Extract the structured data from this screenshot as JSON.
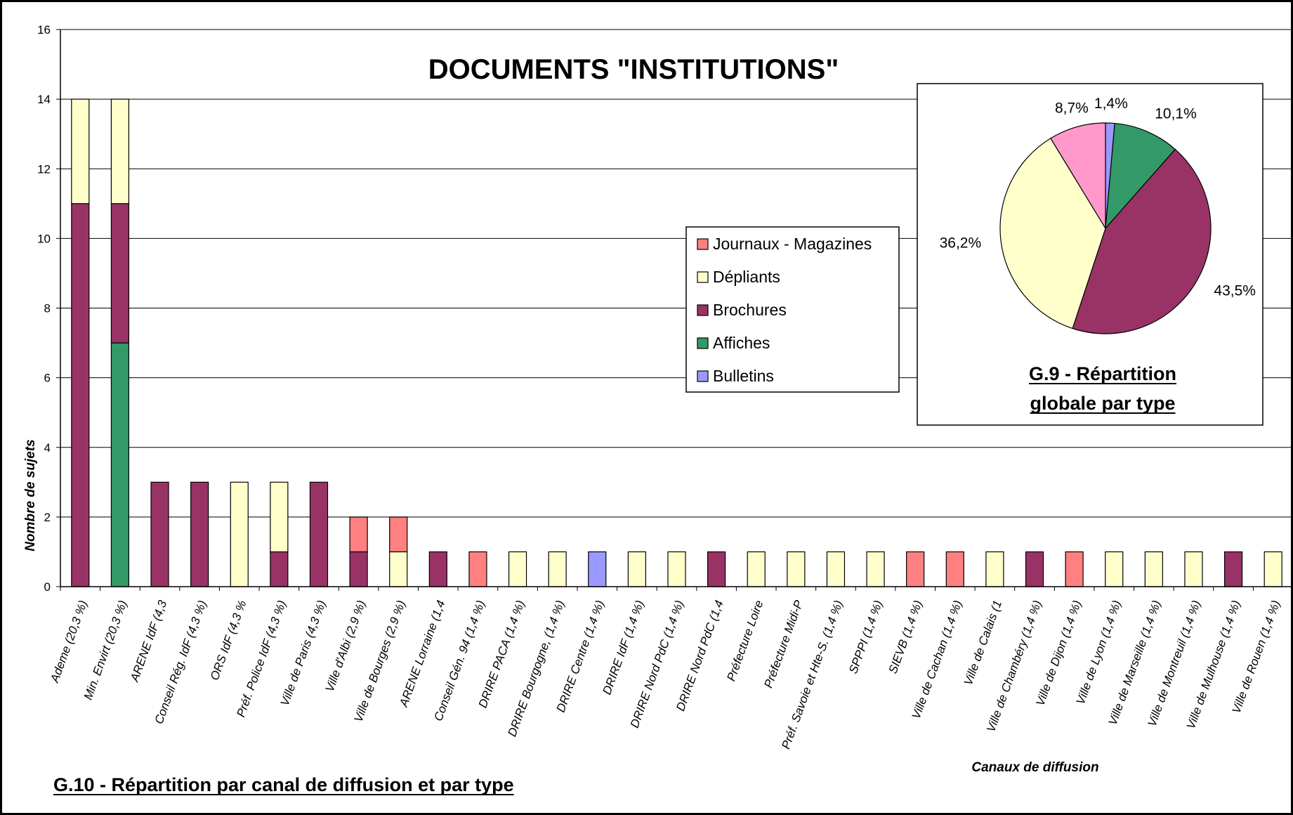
{
  "chart_data": [
    {
      "type": "bar",
      "stacked": true,
      "title": "DOCUMENTS \"INSTITUTIONS\"",
      "caption": "G.10 - Répartition par canal de diffusion et par type",
      "xlabel": "Canaux de diffusion",
      "ylabel": "Nombre de sujets",
      "ylim": [
        0,
        16
      ],
      "yticks": [
        0,
        2,
        4,
        6,
        8,
        10,
        12,
        14,
        16
      ],
      "grid": true,
      "legend_position": "center-right",
      "categories": [
        "Ademe (20,3 %)",
        "Min. Envirt (20,3 %)",
        "ARENE IdF (4,3",
        "Conseil Rég. IdF (4,3 %)",
        "ORS IdF (4,3 %",
        "Préf. Police IdF (4,3 %)",
        "Ville de Paris (4,3 %)",
        "Ville d'Albi (2,9 %)",
        "Ville de Bourges (2,9 %)",
        "ARENE Lorraine (1,4",
        "Conseil Gén. 94 (1,4 %)",
        "DRIRE  PACA (1,4 %)",
        "DRIRE Bourgogne, (1,4 %)",
        "DRIRE Centre (1,4 %)",
        "DRIRE IdF (1,4 %)",
        "DRIRE Nord PdC (1,4 %)",
        "DRIRE Nord PdC (1,4",
        "Préfecture Loire",
        "Préfecture Midi-P",
        "Préf. Savoie et Hte-S. (1,4 %)",
        "SPPPI (1,4 %)",
        "SIEVB (1,4 %)",
        "Ville de Cachan (1,4 %)",
        "Ville de Calais (1",
        "Ville de Chambéry (1,4 %)",
        "Ville de Dijon (1,4 %)",
        "Ville de Lyon (1,4 %)",
        "Ville de Marseille (1,4 %)",
        "Ville de Montreuil (1,4 %)",
        "Ville de Mulhouse (1,4 %)",
        "Ville de Rouen (1,4 %)"
      ],
      "series": [
        {
          "name": "Bulletins",
          "color": "#9999ff",
          "values": [
            0,
            0,
            0,
            0,
            0,
            0,
            0,
            0,
            0,
            0,
            0,
            0,
            0,
            1,
            0,
            0,
            0,
            0,
            0,
            0,
            0,
            0,
            0,
            0,
            0,
            0,
            0,
            0,
            0,
            0,
            0
          ]
        },
        {
          "name": "Affiches",
          "color": "#339966",
          "values": [
            0,
            7,
            0,
            0,
            0,
            0,
            0,
            0,
            0,
            0,
            0,
            0,
            0,
            0,
            0,
            0,
            0,
            0,
            0,
            0,
            0,
            0,
            0,
            0,
            0,
            0,
            0,
            0,
            0,
            0,
            0
          ]
        },
        {
          "name": "Brochures",
          "color": "#993366",
          "values": [
            11,
            4,
            3,
            3,
            0,
            1,
            3,
            1,
            0,
            1,
            0,
            0,
            0,
            0,
            0,
            0,
            1,
            0,
            0,
            0,
            0,
            0,
            0,
            0,
            1,
            0,
            0,
            0,
            0,
            1,
            0
          ]
        },
        {
          "name": "Dépliants",
          "color": "#ffffcc",
          "values": [
            3,
            3,
            0,
            0,
            3,
            2,
            0,
            0,
            1,
            0,
            0,
            1,
            1,
            0,
            1,
            1,
            0,
            1,
            1,
            1,
            1,
            0,
            0,
            1,
            0,
            0,
            1,
            1,
            1,
            0,
            1
          ]
        },
        {
          "name": "Journaux - Magazines",
          "color": "#ff8080",
          "values": [
            0,
            0,
            0,
            0,
            0,
            0,
            0,
            1,
            1,
            0,
            1,
            0,
            0,
            0,
            0,
            0,
            0,
            0,
            0,
            0,
            0,
            1,
            1,
            0,
            0,
            1,
            0,
            0,
            0,
            0,
            0
          ]
        }
      ],
      "legend_order": [
        "Journaux - Magazines",
        "Dépliants",
        "Brochures",
        "Affiches",
        "Bulletins"
      ]
    },
    {
      "type": "pie",
      "caption_line1": "G.9 - Répartition",
      "caption_line2": "globale par type",
      "slices": [
        {
          "name": "Bulletins",
          "value": 1.4,
          "label": "1,4%",
          "color": "#9999ff"
        },
        {
          "name": "Affiches",
          "value": 10.1,
          "label": "10,1%",
          "color": "#339966"
        },
        {
          "name": "Brochures",
          "value": 43.5,
          "label": "43,5%",
          "color": "#993366"
        },
        {
          "name": "Dépliants",
          "value": 36.2,
          "label": "36,2%",
          "color": "#ffffcc"
        },
        {
          "name": "Journaux - Magazines",
          "value": 8.7,
          "label": "8,7%",
          "color": "#ff99cc"
        }
      ]
    }
  ]
}
